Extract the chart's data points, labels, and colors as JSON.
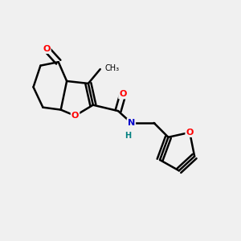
{
  "background_color": "#f0f0f0",
  "bond_color": "#000000",
  "atom_colors": {
    "O": "#ff0000",
    "N": "#0000cc",
    "H": "#008080",
    "C": "#000000"
  },
  "figsize": [
    3.0,
    3.0
  ],
  "dpi": 100
}
